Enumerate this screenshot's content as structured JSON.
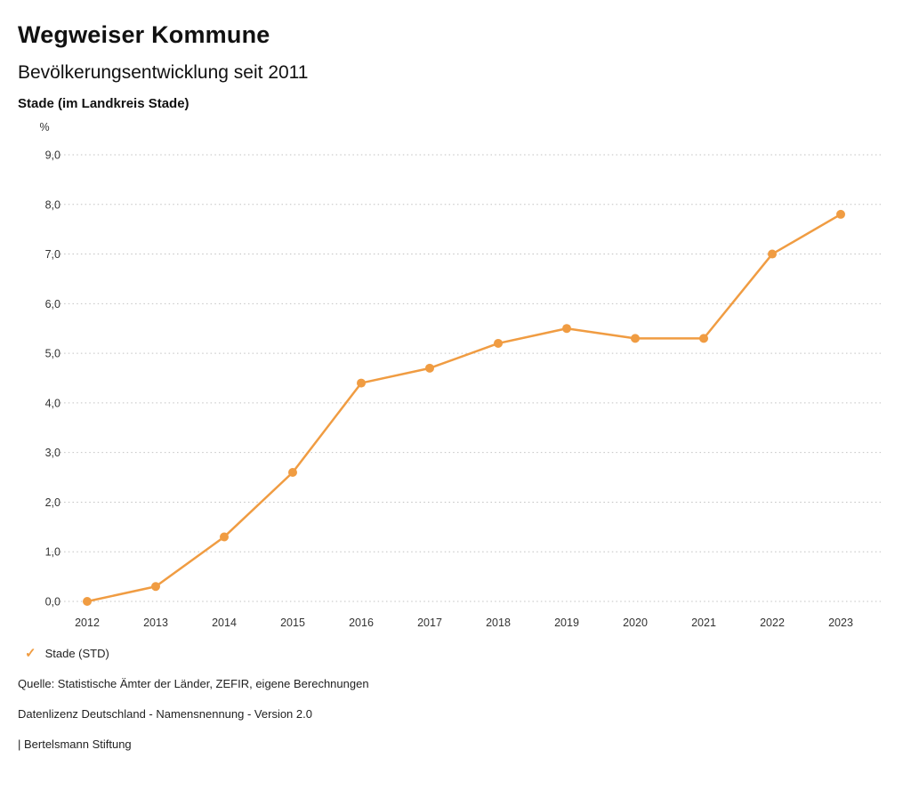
{
  "header": {
    "title": "Wegweiser Kommune",
    "subtitle": "Bevölkerungsentwicklung seit 2011",
    "region": "Stade (im Landkreis Stade)"
  },
  "chart_data": {
    "type": "line",
    "title": "Bevölkerungsentwicklung seit 2011",
    "unit": "%",
    "x": [
      "2012",
      "2013",
      "2014",
      "2015",
      "2016",
      "2017",
      "2018",
      "2019",
      "2020",
      "2021",
      "2022",
      "2023"
    ],
    "series": [
      {
        "name": "Stade (STD)",
        "values": [
          0.0,
          0.3,
          1.3,
          2.6,
          4.4,
          4.7,
          5.2,
          5.5,
          5.3,
          5.3,
          7.0,
          7.8
        ]
      }
    ],
    "ylim": [
      0,
      9
    ],
    "ytick_step": 1,
    "ytick_labels": [
      "0,0",
      "1,0",
      "2,0",
      "3,0",
      "4,0",
      "5,0",
      "6,0",
      "7,0",
      "8,0",
      "9,0"
    ],
    "grid": "dotted-horizontal",
    "legend_position": "bottom-left",
    "line_color": "#F09C42",
    "grid_color": "#c2c2c2",
    "axis_text_color": "#333333"
  },
  "legend": {
    "check_glyph": "✓",
    "items": [
      {
        "label": "Stade (STD)",
        "color": "#F09C42"
      }
    ]
  },
  "footer": {
    "source": "Quelle: Statistische Ämter der Länder, ZEFIR, eigene Berechnungen",
    "license": "Datenlizenz Deutschland - Namensnennung - Version 2.0",
    "attribution": "| Bertelsmann Stiftung"
  }
}
